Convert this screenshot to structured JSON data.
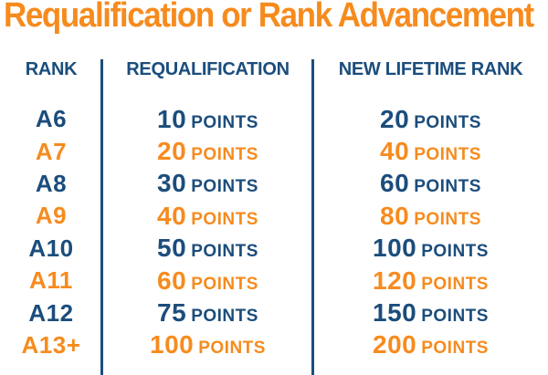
{
  "title": "Requalification or Rank Advancement",
  "colors": {
    "navy": "#1B4D7C",
    "orange": "#F68B1E",
    "background": "#FFFFFF"
  },
  "table": {
    "headers": [
      "RANK",
      "REQUALIFICATION",
      "NEW LIFETIME RANK"
    ],
    "points_label": "POINTS",
    "rows": [
      {
        "rank": "A6",
        "requalification_points": "10",
        "new_lifetime_points": "20"
      },
      {
        "rank": "A7",
        "requalification_points": "20",
        "new_lifetime_points": "40"
      },
      {
        "rank": "A8",
        "requalification_points": "30",
        "new_lifetime_points": "60"
      },
      {
        "rank": "A9",
        "requalification_points": "40",
        "new_lifetime_points": "80"
      },
      {
        "rank": "A10",
        "requalification_points": "50",
        "new_lifetime_points": "100"
      },
      {
        "rank": "A11",
        "requalification_points": "60",
        "new_lifetime_points": "120"
      },
      {
        "rank": "A12",
        "requalification_points": "75",
        "new_lifetime_points": "150"
      },
      {
        "rank": "A13+",
        "requalification_points": "100",
        "new_lifetime_points": "200"
      }
    ]
  },
  "chart_data": {
    "type": "table",
    "title": "Requalification or Rank Advancement",
    "columns": [
      "RANK",
      "REQUALIFICATION",
      "NEW LIFETIME RANK"
    ],
    "rows": [
      [
        "A6",
        "10 POINTS",
        "20 POINTS"
      ],
      [
        "A7",
        "20 POINTS",
        "40 POINTS"
      ],
      [
        "A8",
        "30 POINTS",
        "60 POINTS"
      ],
      [
        "A9",
        "40 POINTS",
        "80 POINTS"
      ],
      [
        "A10",
        "50 POINTS",
        "100 POINTS"
      ],
      [
        "A11",
        "60 POINTS",
        "120 POINTS"
      ],
      [
        "A12",
        "75 POINTS",
        "150 POINTS"
      ],
      [
        "A13+",
        "100 POINTS",
        "200 POINTS"
      ]
    ],
    "layout": {
      "row_color_alternation": [
        "navy",
        "orange"
      ],
      "dividers": "vertical between columns"
    }
  }
}
